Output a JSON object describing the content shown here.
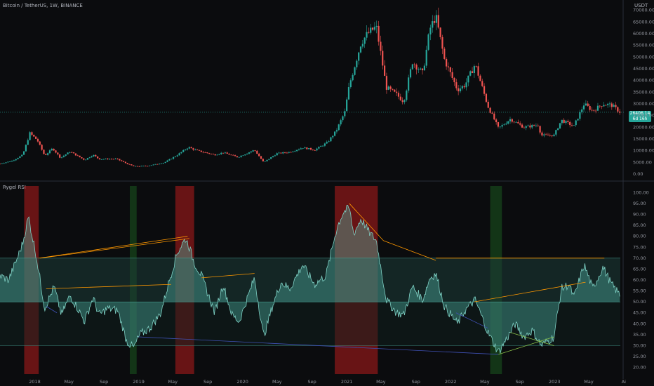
{
  "header": {
    "symbol": "Bitcoin / TetherUS, 1W, BINANCE",
    "currency": "USDT"
  },
  "price_badge": {
    "price": "26406.14",
    "countdown": "6d 16h"
  },
  "indicator": {
    "name": "Rygel RSI"
  },
  "colors": {
    "background": "#0b0c0e",
    "up_candle": "#26a69a",
    "down_candle": "#ef5350",
    "rsi_fill": "#4fb6a8",
    "overbought_band": "#b71c1c",
    "oversold_band": "#1b5e20",
    "divergence_bear": "#ff9800",
    "divergence_bull": "#3f51b5"
  },
  "chart_data": [
    {
      "type": "candlestick",
      "title": "Bitcoin / TetherUS, 1W, BINANCE",
      "y_unit": "USDT",
      "ylim": [
        -1500,
        72000
      ],
      "y_ticks": [
        "70000.00",
        "65000.00",
        "60000.00",
        "55000.00",
        "50000.00",
        "45000.00",
        "40000.00",
        "35000.00",
        "30000.00",
        "25000.00",
        "20000.00",
        "15000.00",
        "10000.00",
        "5000.00",
        "0.00"
      ],
      "x_ticks": [
        "2018",
        "May",
        "Sep",
        "2019",
        "May",
        "Sep",
        "2020",
        "May",
        "Sep",
        "2021",
        "May",
        "Sep",
        "2022",
        "May",
        "Sep",
        "2023",
        "May",
        "Ai"
      ],
      "x_range": [
        "2017-09-01",
        "2023-08-20"
      ],
      "last_price": 26406.14,
      "weekly_close_anchors": [
        [
          "2017-09-01",
          4400
        ],
        [
          "2017-10-15",
          5700
        ],
        [
          "2017-11-20",
          8200
        ],
        [
          "2017-12-15",
          17500
        ],
        [
          "2018-01-10",
          14500
        ],
        [
          "2018-02-05",
          7800
        ],
        [
          "2018-03-05",
          11000
        ],
        [
          "2018-04-01",
          6900
        ],
        [
          "2018-05-05",
          9600
        ],
        [
          "2018-06-25",
          6000
        ],
        [
          "2018-07-25",
          8200
        ],
        [
          "2018-08-15",
          6400
        ],
        [
          "2018-10-15",
          6500
        ],
        [
          "2018-11-20",
          4500
        ],
        [
          "2018-12-15",
          3300
        ],
        [
          "2019-02-01",
          3500
        ],
        [
          "2019-04-01",
          4900
        ],
        [
          "2019-05-15",
          8000
        ],
        [
          "2019-06-25",
          11500
        ],
        [
          "2019-07-20",
          10200
        ],
        [
          "2019-09-25",
          8200
        ],
        [
          "2019-10-25",
          9200
        ],
        [
          "2019-12-15",
          7200
        ],
        [
          "2020-02-12",
          10300
        ],
        [
          "2020-03-15",
          5000
        ],
        [
          "2020-05-01",
          8800
        ],
        [
          "2020-06-15",
          9400
        ],
        [
          "2020-07-30",
          11300
        ],
        [
          "2020-09-10",
          10300
        ],
        [
          "2020-10-25",
          13500
        ],
        [
          "2020-11-25",
          18500
        ],
        [
          "2020-12-25",
          26500
        ],
        [
          "2021-01-10",
          38000
        ],
        [
          "2021-02-20",
          56000
        ],
        [
          "2021-03-15",
          60000
        ],
        [
          "2021-04-15",
          63000
        ],
        [
          "2021-05-20",
          37000
        ],
        [
          "2021-06-25",
          34000
        ],
        [
          "2021-07-20",
          31000
        ],
        [
          "2021-08-20",
          48000
        ],
        [
          "2021-09-25",
          43000
        ],
        [
          "2021-10-20",
          62000
        ],
        [
          "2021-11-10",
          67500
        ],
        [
          "2021-12-10",
          49000
        ],
        [
          "2022-01-25",
          36000
        ],
        [
          "2022-02-20",
          38000
        ],
        [
          "2022-03-28",
          47000
        ],
        [
          "2022-05-12",
          29000
        ],
        [
          "2022-06-18",
          19500
        ],
        [
          "2022-07-30",
          23500
        ],
        [
          "2022-09-15",
          20000
        ],
        [
          "2022-11-05",
          21000
        ],
        [
          "2022-11-15",
          16500
        ],
        [
          "2022-12-30",
          16600
        ],
        [
          "2023-01-25",
          23000
        ],
        [
          "2023-03-10",
          20500
        ],
        [
          "2023-04-15",
          30000
        ],
        [
          "2023-05-15",
          27000
        ],
        [
          "2023-06-20",
          30000
        ],
        [
          "2023-07-20",
          29500
        ],
        [
          "2023-08-20",
          26406
        ]
      ]
    },
    {
      "type": "area",
      "title": "Rygel RSI",
      "ylim": [
        17,
        103
      ],
      "y_ticks": [
        100,
        95,
        90,
        85,
        80,
        75,
        70,
        65,
        60,
        55,
        50,
        45,
        40,
        35,
        30,
        25,
        20
      ],
      "levels": {
        "overbought": 70,
        "mid": 50,
        "oversold": 30
      },
      "rsi_anchors": [
        [
          "2017-09-01",
          62
        ],
        [
          "2017-10-01",
          60
        ],
        [
          "2017-11-01",
          70
        ],
        [
          "2017-11-20",
          77
        ],
        [
          "2017-12-10",
          89
        ],
        [
          "2017-12-25",
          79
        ],
        [
          "2018-01-05",
          72
        ],
        [
          "2018-01-20",
          60
        ],
        [
          "2018-02-05",
          47
        ],
        [
          "2018-02-25",
          53
        ],
        [
          "2018-03-10",
          57
        ],
        [
          "2018-04-05",
          44
        ],
        [
          "2018-05-05",
          53
        ],
        [
          "2018-06-01",
          47
        ],
        [
          "2018-06-25",
          41
        ],
        [
          "2018-07-25",
          52
        ],
        [
          "2018-08-15",
          44
        ],
        [
          "2018-09-15",
          47
        ],
        [
          "2018-10-20",
          46
        ],
        [
          "2018-11-20",
          32
        ],
        [
          "2018-12-15",
          29
        ],
        [
          "2019-01-05",
          35
        ],
        [
          "2019-02-10",
          38
        ],
        [
          "2019-03-20",
          45
        ],
        [
          "2019-04-15",
          58
        ],
        [
          "2019-05-15",
          72
        ],
        [
          "2019-06-01",
          76
        ],
        [
          "2019-06-15",
          79
        ],
        [
          "2019-06-28",
          75
        ],
        [
          "2019-07-15",
          68
        ],
        [
          "2019-08-10",
          62
        ],
        [
          "2019-09-25",
          45
        ],
        [
          "2019-10-25",
          58
        ],
        [
          "2019-11-25",
          44
        ],
        [
          "2019-12-20",
          41
        ],
        [
          "2020-02-12",
          61
        ],
        [
          "2020-03-15",
          34
        ],
        [
          "2020-04-15",
          48
        ],
        [
          "2020-05-15",
          59
        ],
        [
          "2020-06-15",
          56
        ],
        [
          "2020-07-30",
          67
        ],
        [
          "2020-09-10",
          58
        ],
        [
          "2020-10-20",
          62
        ],
        [
          "2020-11-20",
          80
        ],
        [
          "2020-12-01",
          85
        ],
        [
          "2020-12-20",
          91
        ],
        [
          "2021-01-10",
          93
        ],
        [
          "2021-01-25",
          81
        ],
        [
          "2021-02-20",
          88
        ],
        [
          "2021-03-20",
          82
        ],
        [
          "2021-04-15",
          78
        ],
        [
          "2021-05-20",
          51
        ],
        [
          "2021-06-25",
          45
        ],
        [
          "2021-07-20",
          44
        ],
        [
          "2021-08-20",
          57
        ],
        [
          "2021-09-25",
          51
        ],
        [
          "2021-10-20",
          61
        ],
        [
          "2021-11-10",
          63
        ],
        [
          "2021-12-10",
          48
        ],
        [
          "2022-01-25",
          40
        ],
        [
          "2022-02-20",
          46
        ],
        [
          "2022-03-28",
          51
        ],
        [
          "2022-05-12",
          36
        ],
        [
          "2022-06-18",
          27
        ],
        [
          "2022-07-30",
          36
        ],
        [
          "2022-08-15",
          40
        ],
        [
          "2022-09-15",
          34
        ],
        [
          "2022-10-15",
          37
        ],
        [
          "2022-11-15",
          30
        ],
        [
          "2022-12-30",
          34
        ],
        [
          "2023-01-25",
          56
        ],
        [
          "2023-02-20",
          58
        ],
        [
          "2023-03-10",
          52
        ],
        [
          "2023-04-15",
          67
        ],
        [
          "2023-05-15",
          56
        ],
        [
          "2023-06-20",
          66
        ],
        [
          "2023-07-20",
          58
        ],
        [
          "2023-08-20",
          53
        ]
      ],
      "overbought_periods": [
        [
          "2017-11-25",
          "2018-01-15"
        ],
        [
          "2019-05-10",
          "2019-07-15"
        ],
        [
          "2020-11-20",
          "2021-04-20"
        ]
      ],
      "oversold_periods": [
        [
          "2018-12-01",
          "2018-12-25"
        ],
        [
          "2022-05-20",
          "2022-06-30"
        ]
      ],
      "divergence_lines": [
        {
          "kind": "bearish",
          "from": [
            "2018-01-15",
            70
          ],
          "to": [
            "2019-06-22",
            80
          ]
        },
        {
          "kind": "bearish",
          "from": [
            "2018-01-20",
            70
          ],
          "to": [
            "2019-06-28",
            79
          ]
        },
        {
          "kind": "bearish",
          "from": [
            "2018-02-10",
            56
          ],
          "to": [
            "2019-04-25",
            58
          ]
        },
        {
          "kind": "bearish",
          "from": [
            "2019-08-10",
            61
          ],
          "to": [
            "2020-02-12",
            63
          ]
        },
        {
          "kind": "bearish",
          "from": [
            "2021-01-10",
            95
          ],
          "to": [
            "2021-05-10",
            78
          ]
        },
        {
          "kind": "bearish",
          "from": [
            "2021-05-10",
            78
          ],
          "to": [
            "2021-11-10",
            69
          ]
        },
        {
          "kind": "bearish",
          "from": [
            "2021-11-10",
            70
          ],
          "to": [
            "2023-06-25",
            70
          ]
        },
        {
          "kind": "bearish",
          "from": [
            "2022-03-25",
            50
          ],
          "to": [
            "2023-04-20",
            59
          ]
        },
        {
          "kind": "bullish",
          "from": [
            "2018-02-10",
            48
          ],
          "to": [
            "2018-03-20",
            45
          ]
        },
        {
          "kind": "bullish",
          "from": [
            "2019-01-01",
            34
          ],
          "to": [
            "2022-06-18",
            26
          ]
        },
        {
          "kind": "bullish",
          "from": [
            "2022-01-20",
            45
          ],
          "to": [
            "2022-05-12",
            38
          ]
        },
        {
          "kind": "bullish_alt",
          "from": [
            "2022-06-18",
            26
          ],
          "to": [
            "2022-12-30",
            34
          ]
        },
        {
          "kind": "bullish_alt",
          "from": [
            "2022-07-30",
            36
          ],
          "to": [
            "2022-12-30",
            30
          ]
        }
      ]
    }
  ]
}
